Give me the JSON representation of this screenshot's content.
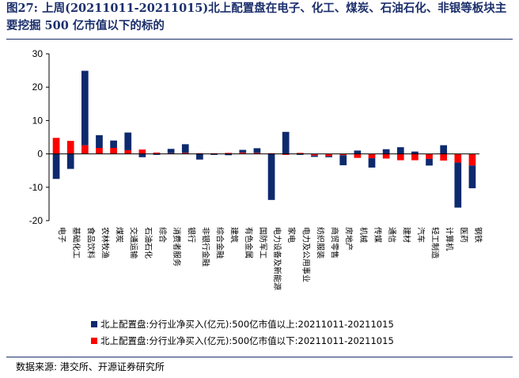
{
  "title": "图27:  上周(20211011-20211015)北上配置盘在电子、化工、煤炭、石油石化、非银等板块主要挖掘 500 亿市值以下的标的",
  "source": "数据来源:  港交所、开源证券研究所",
  "colors": {
    "above": "#0d2a6e",
    "below": "#ff0000",
    "title": "#1b2f6b"
  },
  "chart_data": {
    "type": "bar",
    "ylim": [
      -20,
      30
    ],
    "yticks": [
      -20,
      -10,
      0,
      10,
      20,
      30
    ],
    "grid": false,
    "legend_position": "bottom",
    "categories": [
      "电子",
      "基础化工",
      "食品饮料",
      "农林牧渔",
      "煤炭",
      "交通运输",
      "石油石化",
      "综合",
      "消费者服务",
      "银行",
      "非银行金融",
      "综合金融",
      "建筑",
      "有色金属",
      "国防军工",
      "电力设备及新能源",
      "家电",
      "电力及公用事业",
      "纺织服装",
      "商贸零售",
      "房地产",
      "机械",
      "传媒",
      "通信",
      "建材",
      "汽车",
      "轻工制造",
      "计算机",
      "医药",
      "钢铁"
    ],
    "series": [
      {
        "name": "北上配置盘:分行业净买入(亿元):500亿市值以上:20211011-20211015",
        "values": [
          -7.5,
          -4.5,
          22.3,
          3.8,
          2.2,
          5.3,
          -1.0,
          -0.3,
          1.3,
          2.6,
          -1.7,
          -0.3,
          -0.4,
          0.8,
          1.4,
          -13.8,
          6.6,
          -0.3,
          -0.4,
          -0.3,
          -3.0,
          1.0,
          -2.8,
          1.4,
          2.0,
          0.7,
          -2.0,
          2.6,
          -13.5,
          -6.8
        ]
      },
      {
        "name": "北上配置盘:分行业净买入(亿元):500亿市值以下:20211011-20211015",
        "values": [
          4.8,
          3.9,
          2.6,
          1.8,
          1.8,
          1.1,
          1.3,
          0.4,
          0.2,
          0.3,
          0.2,
          0.2,
          0.3,
          0.4,
          0.3,
          0.2,
          -0.3,
          0.3,
          -0.5,
          -0.7,
          -0.4,
          -1.2,
          -1.3,
          -1.4,
          -1.9,
          -1.9,
          -1.5,
          -2.0,
          -2.6,
          -3.5
        ]
      }
    ]
  }
}
